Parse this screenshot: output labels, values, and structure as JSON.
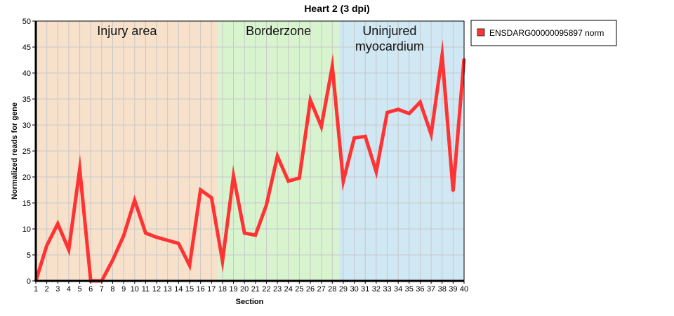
{
  "chart_data": {
    "type": "line",
    "title": "Heart 2 (3 dpi)",
    "xlabel": "Section",
    "ylabel": "Normalized reads for gene",
    "ylim": [
      0,
      50
    ],
    "yticks": [
      0,
      5,
      10,
      15,
      20,
      25,
      30,
      35,
      40,
      45,
      50
    ],
    "xlim": [
      1,
      40
    ],
    "grid": true,
    "legend_position": "right",
    "regions": [
      {
        "label_lines": [
          "Injury area"
        ],
        "x_start": 1,
        "x_end": 17.6,
        "color": "#f7e1cb"
      },
      {
        "label_lines": [
          "Borderzone"
        ],
        "x_start": 17.6,
        "x_end": 28.6,
        "color": "#d8f4cf"
      },
      {
        "label_lines": [
          "Uninjured",
          "myocardium"
        ],
        "x_start": 28.6,
        "x_end": 40,
        "color": "#cfe8f4"
      }
    ],
    "series": [
      {
        "name": "ENSDARG00000095897 norm",
        "color": "#ff3333",
        "x": [
          1,
          2,
          3,
          4,
          5,
          6,
          7,
          8,
          9,
          10,
          11,
          12,
          13,
          14,
          15,
          16,
          17,
          18,
          19,
          20,
          21,
          22,
          23,
          24,
          25,
          26,
          27,
          28,
          29,
          30,
          31,
          32,
          33,
          34,
          35,
          36,
          37,
          38,
          39,
          40
        ],
        "values": [
          0,
          6.8,
          11,
          6,
          21.5,
          0,
          0,
          4,
          8.7,
          15.5,
          9.2,
          8.4,
          7.8,
          7.2,
          3,
          17.5,
          16,
          3.8,
          20.2,
          9.2,
          8.8,
          14.6,
          24,
          19.2,
          19.8,
          34.8,
          29.7,
          41.3,
          19.2,
          27.5,
          27.8,
          21,
          32.4,
          33,
          32.2,
          34.4,
          28.2,
          43.4,
          17.3,
          42.7
        ]
      }
    ]
  }
}
